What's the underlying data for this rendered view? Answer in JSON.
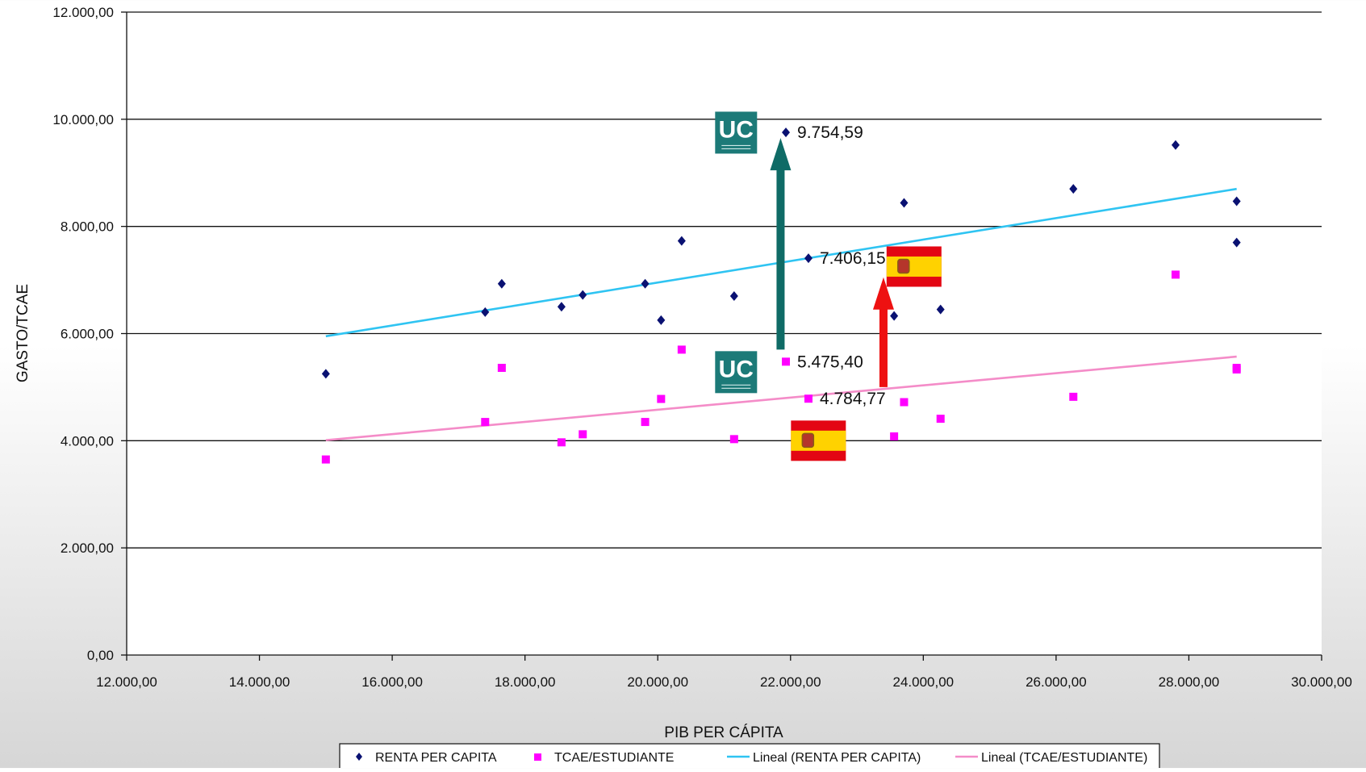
{
  "chart_data": {
    "type": "scatter",
    "title": "",
    "xlabel": "PIB PER CÁPITA",
    "ylabel": "GASTO/TCAE",
    "xlim": [
      12000,
      30000
    ],
    "ylim": [
      0,
      12000
    ],
    "x_ticks": [
      12000,
      14000,
      16000,
      18000,
      20000,
      22000,
      24000,
      26000,
      28000,
      30000
    ],
    "y_ticks": [
      0,
      2000,
      4000,
      6000,
      8000,
      10000,
      12000
    ],
    "x_tick_labels": [
      "12.000,00",
      "14.000,00",
      "16.000,00",
      "18.000,00",
      "20.000,00",
      "22.000,00",
      "24.000,00",
      "26.000,00",
      "28.000,00",
      "30.000,00"
    ],
    "y_tick_labels": [
      "0,00",
      "2.000,00",
      "4.000,00",
      "6.000,00",
      "8.000,00",
      "10.000,00",
      "12.000,00"
    ],
    "grid": "horizontal",
    "legend": "bottom",
    "series": [
      {
        "name": "RENTA PER CAPITA",
        "kind": "scatter",
        "marker": "diamond",
        "color": "#0a1172",
        "points": [
          [
            15000,
            5250
          ],
          [
            17400,
            6400
          ],
          [
            17650,
            6930
          ],
          [
            18550,
            6500
          ],
          [
            18870,
            6720
          ],
          [
            19810,
            6930
          ],
          [
            20050,
            6250
          ],
          [
            20360,
            7730
          ],
          [
            21150,
            6700
          ],
          [
            21930,
            9754.59
          ],
          [
            22270,
            7406.15
          ],
          [
            23560,
            6330
          ],
          [
            23710,
            8440
          ],
          [
            24260,
            6450
          ],
          [
            26260,
            8700
          ],
          [
            27800,
            9520
          ],
          [
            28720,
            8470
          ],
          [
            28720,
            7700
          ]
        ]
      },
      {
        "name": "TCAE/ESTUDIANTE",
        "kind": "scatter",
        "marker": "square",
        "color": "#ff00ff",
        "points": [
          [
            15000,
            3650
          ],
          [
            17400,
            4350
          ],
          [
            17650,
            5360
          ],
          [
            18550,
            3970
          ],
          [
            18870,
            4120
          ],
          [
            19810,
            4350
          ],
          [
            20050,
            4780
          ],
          [
            20360,
            5700
          ],
          [
            21150,
            4030
          ],
          [
            21930,
            5475.4
          ],
          [
            22270,
            4784.77
          ],
          [
            23560,
            4080
          ],
          [
            23710,
            4720
          ],
          [
            24260,
            4410
          ],
          [
            26260,
            4820
          ],
          [
            27800,
            7100
          ],
          [
            28720,
            5330
          ],
          [
            28720,
            5360
          ]
        ]
      },
      {
        "name": "Lineal (RENTA PER CAPITA)",
        "kind": "trendline",
        "color": "#2fc4f2",
        "points": [
          [
            15000,
            5950
          ],
          [
            28720,
            8700
          ]
        ]
      },
      {
        "name": "Lineal (TCAE/ESTUDIANTE)",
        "kind": "trendline",
        "color": "#f48cc8",
        "points": [
          [
            15000,
            4010
          ],
          [
            28720,
            5570
          ]
        ]
      }
    ],
    "annotations": [
      {
        "label": "9.754,59",
        "x": 21930,
        "y": 9754.59
      },
      {
        "label": "7.406,15",
        "x": 22270,
        "y": 7406.15
      },
      {
        "label": "5.475,40",
        "x": 21930,
        "y": 5475.4
      },
      {
        "label": "4.784,77",
        "x": 22270,
        "y": 4784.77
      }
    ],
    "arrows": [
      {
        "name": "uc-gap-arrow",
        "color": "#0f6b66",
        "x": 21850,
        "y_from": 5700,
        "y_to": 9650
      },
      {
        "name": "spain-gap-arrow",
        "color": "#ee1111",
        "x": 23400,
        "y_from": 5000,
        "y_to": 7050
      }
    ],
    "badges": [
      {
        "name": "uc-logo",
        "text": "UC",
        "x": 21180,
        "y": 9750
      },
      {
        "name": "uc-logo",
        "text": "UC",
        "x": 21180,
        "y": 5280
      },
      {
        "name": "spain-flag",
        "x": 23860,
        "y": 7250
      },
      {
        "name": "spain-flag",
        "x": 22420,
        "y": 4000
      }
    ],
    "colors": {
      "uc_logo_bg": "#1c7a78",
      "flag_red": "#e30613",
      "flag_yellow": "#ffd200"
    }
  }
}
